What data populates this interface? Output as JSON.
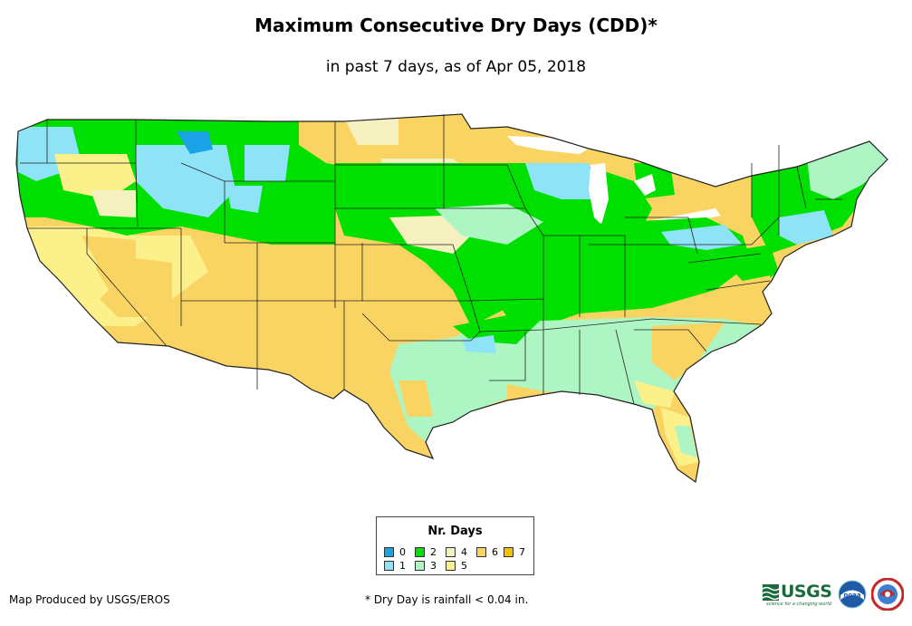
{
  "title": "Maximum Consecutive Dry Days (CDD)*",
  "subtitle": "in past 7 days, as of Apr 05, 2018",
  "legend": {
    "title": "Nr. Days",
    "items": [
      {
        "label": "0",
        "color": "#1aa2e6"
      },
      {
        "label": "1",
        "color": "#8fe3f7"
      },
      {
        "label": "2",
        "color": "#00e000"
      },
      {
        "label": "3",
        "color": "#aef5c4"
      },
      {
        "label": "4",
        "color": "#f5f0bf"
      },
      {
        "label": "5",
        "color": "#fcf08a"
      },
      {
        "label": "6",
        "color": "#fad462"
      },
      {
        "label": "7",
        "color": "#f7bf00"
      }
    ]
  },
  "credit": "Map Produced by USGS/EROS",
  "footnote": "* Dry Day is rainfall < 0.04 in.",
  "logos": {
    "usgs_word": "USGS",
    "usgs_tagline": "science for a changing world",
    "noaa_word": "noaa"
  }
}
